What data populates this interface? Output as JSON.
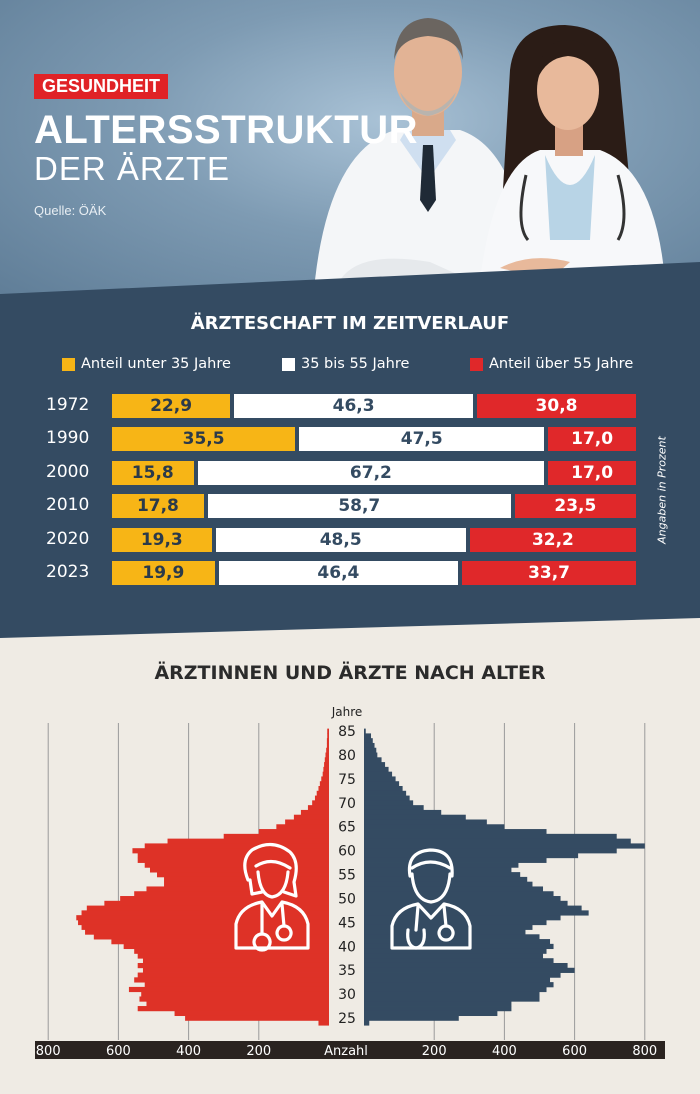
{
  "header": {
    "badge": "GESUNDHEIT",
    "title_line1": "ALTERSSTRUKTUR",
    "title_line2": "DER ÄRZTE",
    "source": "Quelle: ÖÄK"
  },
  "colors": {
    "yellow": "#f7b516",
    "white": "#ffffff",
    "red": "#e0282a",
    "navy": "#344b62",
    "pyramid_female": "#de3227",
    "pyramid_male": "#344b62",
    "background": "#efebe4"
  },
  "chart_data": [
    {
      "type": "bar",
      "orientation": "horizontal",
      "stacked": true,
      "title": "ÄRZTESCHAFT IM ZEITVERLAUF",
      "note": "Angaben in Prozent",
      "categories": [
        "1972",
        "1990",
        "2000",
        "2010",
        "2020",
        "2023"
      ],
      "series": [
        {
          "name": "Anteil unter 35 Jahre",
          "values": [
            "22,9",
            "35,5",
            "15,8",
            "17,8",
            "19,3",
            "19,9"
          ],
          "numeric": [
            22.9,
            35.5,
            15.8,
            17.8,
            19.3,
            19.9
          ]
        },
        {
          "name": "35 bis 55 Jahre",
          "values": [
            "46,3",
            "47,5",
            "67,2",
            "58,7",
            "48,5",
            "46,4"
          ],
          "numeric": [
            46.3,
            47.5,
            67.2,
            58.7,
            48.5,
            46.4
          ]
        },
        {
          "name": "Anteil über 55 Jahre",
          "values": [
            "30,8",
            "17,0",
            "17,0",
            "23,5",
            "32,2",
            "33,7"
          ],
          "numeric": [
            30.8,
            17.0,
            17.0,
            23.5,
            32.2,
            33.7
          ]
        }
      ]
    },
    {
      "type": "bar",
      "subtype": "population-pyramid",
      "title": "ÄRZTINNEN UND ÄRZTE NACH ALTER",
      "y_axis_title": "Jahre",
      "x_axis_title": "Anzahl",
      "age_tick_labels": [
        "85",
        "80",
        "75",
        "70",
        "65",
        "60",
        "55",
        "50",
        "45",
        "40",
        "35",
        "30",
        "25"
      ],
      "x_tick_labels_left": [
        "800",
        "600",
        "400",
        "200"
      ],
      "x_tick_labels_right": [
        "200",
        "400",
        "600",
        "800"
      ],
      "xlim": [
        0,
        800
      ],
      "ylim": [
        24,
        85
      ],
      "ages": [
        85,
        84,
        83,
        82,
        81,
        80,
        79,
        78,
        77,
        76,
        75,
        74,
        73,
        72,
        71,
        70,
        69,
        68,
        67,
        66,
        65,
        64,
        63,
        62,
        61,
        60,
        59,
        58,
        57,
        56,
        55,
        54,
        53,
        52,
        51,
        50,
        49,
        48,
        47,
        46,
        45,
        44,
        43,
        42,
        41,
        40,
        39,
        38,
        37,
        36,
        35,
        34,
        33,
        32,
        31,
        30,
        29,
        28,
        27,
        26,
        25,
        24
      ],
      "female": [
        5,
        5,
        6,
        6,
        8,
        10,
        12,
        14,
        16,
        18,
        22,
        26,
        30,
        35,
        40,
        48,
        60,
        80,
        100,
        125,
        150,
        200,
        300,
        460,
        525,
        560,
        545,
        545,
        525,
        510,
        490,
        470,
        470,
        520,
        555,
        595,
        640,
        690,
        705,
        720,
        715,
        705,
        695,
        670,
        620,
        585,
        555,
        545,
        530,
        545,
        530,
        545,
        555,
        525,
        570,
        535,
        540,
        520,
        545,
        440,
        410,
        30
      ],
      "male": [
        5,
        20,
        25,
        30,
        35,
        38,
        50,
        60,
        70,
        80,
        90,
        100,
        110,
        120,
        130,
        140,
        170,
        220,
        290,
        350,
        400,
        520,
        720,
        760,
        800,
        720,
        610,
        520,
        440,
        420,
        445,
        465,
        480,
        510,
        540,
        560,
        580,
        620,
        640,
        560,
        520,
        480,
        460,
        500,
        530,
        540,
        520,
        510,
        540,
        580,
        600,
        560,
        530,
        540,
        520,
        500,
        500,
        420,
        420,
        380,
        270,
        15
      ]
    }
  ]
}
